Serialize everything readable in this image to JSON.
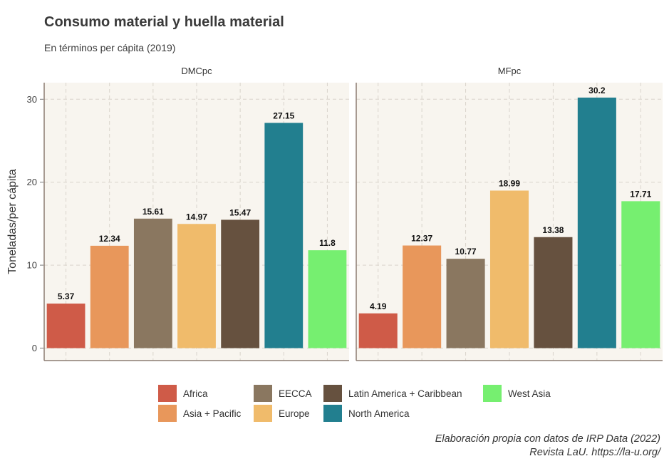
{
  "chart_data": {
    "type": "bar",
    "title": "Consumo material y huella material",
    "subtitle": "En términos per cápita (2019)",
    "ylabel": "Toneladas/per cápita",
    "xlabel": "",
    "ylim": [
      -1.5,
      32
    ],
    "yticks": [
      0,
      10,
      20,
      30
    ],
    "grid": true,
    "legend_position": "bottom",
    "categories": [
      "Africa",
      "Asia + Pacific",
      "EECCA",
      "Europe",
      "Latin America + Caribbean",
      "North America",
      "West Asia"
    ],
    "colors": [
      "#cf5b48",
      "#e8975b",
      "#8a7760",
      "#f0bb6b",
      "#66513f",
      "#227f8f",
      "#76ef70"
    ],
    "panels": [
      {
        "name": "DMCpc",
        "values": [
          5.37,
          12.34,
          15.61,
          14.97,
          15.47,
          27.15,
          11.8
        ]
      },
      {
        "name": "MFpc",
        "values": [
          4.19,
          12.37,
          10.77,
          18.99,
          13.38,
          30.2,
          17.71
        ]
      }
    ],
    "caption_line1": "Elaboración propia con datos de IRP Data (2022)",
    "caption_line2": "Revista LaU. https://la-u.org/"
  }
}
